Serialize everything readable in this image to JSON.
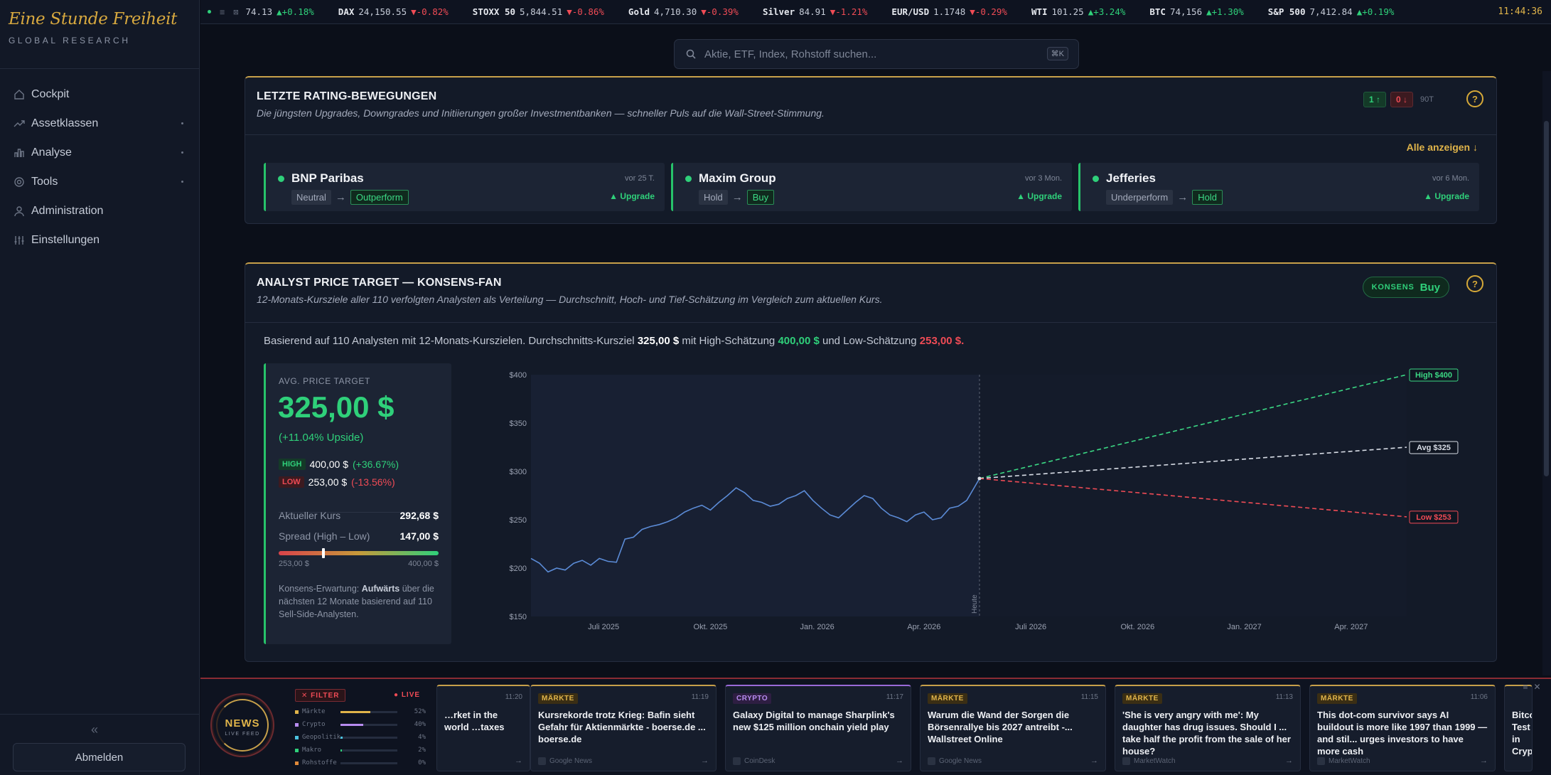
{
  "brand": {
    "name": "Eine Stunde Freiheit",
    "subtitle": "GLOBAL RESEARCH"
  },
  "sidebar": {
    "items": [
      {
        "label": "Cockpit",
        "icon": "home-icon",
        "has_sub": false
      },
      {
        "label": "Assetklassen",
        "icon": "trend-icon",
        "has_sub": true
      },
      {
        "label": "Analyse",
        "icon": "bar-chart-icon",
        "has_sub": true
      },
      {
        "label": "Tools",
        "icon": "gear-icon",
        "has_sub": true
      },
      {
        "label": "Administration",
        "icon": "users-icon",
        "has_sub": false
      },
      {
        "label": "Einstellungen",
        "icon": "sliders-icon",
        "has_sub": false
      }
    ],
    "collapse": "«",
    "logout": "Abmelden"
  },
  "ticker": {
    "items": [
      {
        "name": "",
        "value": "74.13",
        "change": "▲+0.18%",
        "dir": "up"
      },
      {
        "name": "DAX",
        "value": "24,150.55",
        "change": "▼-0.82%",
        "dir": "down"
      },
      {
        "name": "STOXX 50",
        "value": "5,844.51",
        "change": "▼-0.86%",
        "dir": "down"
      },
      {
        "name": "Gold",
        "value": "4,710.30",
        "change": "▼-0.39%",
        "dir": "down"
      },
      {
        "name": "Silver",
        "value": "84.91",
        "change": "▼-1.21%",
        "dir": "down"
      },
      {
        "name": "EUR/USD",
        "value": "1.1748",
        "change": "▼-0.29%",
        "dir": "down"
      },
      {
        "name": "WTI",
        "value": "101.25",
        "change": "▲+3.24%",
        "dir": "up"
      },
      {
        "name": "BTC",
        "value": "74,156",
        "change": "▲+1.30%",
        "dir": "up"
      },
      {
        "name": "S&P 500",
        "value": "7,412.84",
        "change": "▲+0.19%",
        "dir": "up"
      }
    ],
    "clock": "11:44:36"
  },
  "search": {
    "placeholder": "Aktie, ETF, Index, Rohstoff suchen...",
    "shortcut": "⌘K"
  },
  "ratings_card": {
    "title": "LETZTE RATING-BEWEGUNGEN",
    "desc": "Die jüngsten Upgrades, Downgrades und Initiierungen großer Investmentbanken — schneller Puls auf die Wall-Street-Stimmung.",
    "up_badge": "1 ↑",
    "down_badge": "0 ↓",
    "period": "90T",
    "help": "?",
    "show_all": "Alle anzeigen ↓",
    "items": [
      {
        "bank": "BNP Paribas",
        "ago": "vor 25 T.",
        "from": "Neutral",
        "to": "Outperform",
        "action": "▲ Upgrade"
      },
      {
        "bank": "Maxim Group",
        "ago": "vor 3 Mon.",
        "from": "Hold",
        "to": "Buy",
        "action": "▲ Upgrade"
      },
      {
        "bank": "Jefferies",
        "ago": "vor 6 Mon.",
        "from": "Underperform",
        "to": "Hold",
        "action": "▲ Upgrade"
      }
    ]
  },
  "pt_card": {
    "title": "ANALYST PRICE TARGET — KONSENS-FAN",
    "desc": "12-Monats-Kursziele aller 110 verfolgten Analysten als Verteilung — Durchschnitt, Hoch- und Tief-Schätzung im Vergleich zum aktuellen Kurs.",
    "consensus_label": "KONSENS",
    "consensus_value": "Buy",
    "help": "?",
    "summary_pre": "Basierend auf 110 Analysten mit 12-Monats-Kurszielen. Durchschnitts-Kursziel ",
    "summary_avg": "325,00 $",
    "summary_mid": " mit High-Schätzung ",
    "summary_high": "400,00 $",
    "summary_mid2": " und Low-Schätzung ",
    "summary_low": "253,00 $.",
    "box": {
      "label": "AVG. PRICE TARGET",
      "avg": "325,00 $",
      "upside": "(+11.04% Upside)",
      "high_tag": "HIGH",
      "high_val": "400,00 $",
      "high_pct": "(+36.67%)",
      "low_tag": "LOW",
      "low_val": "253,00 $",
      "low_pct": "(-13.56%)",
      "current_label": "Aktueller Kurs",
      "current_val": "292,68 $",
      "spread_label": "Spread (High – Low)",
      "spread_val": "147,00 $",
      "spread_min": "253,00 $",
      "spread_max": "400,00 $",
      "current_position": 0.27,
      "note_pre": "Konsens-Erwartung: ",
      "note_bold": "Aufwärts",
      "note_post": " über die nächsten 12 Monate basierend auf 110 Sell-Side-Analysten."
    }
  },
  "chart_data": {
    "type": "line",
    "ylim": [
      150,
      400
    ],
    "yticks": [
      "$150",
      "$200",
      "$250",
      "$300",
      "$350",
      "$400"
    ],
    "ytick_values": [
      150,
      200,
      250,
      300,
      350,
      400
    ],
    "x_ticks": [
      "Juli 2025",
      "Okt. 2025",
      "Jan. 2026",
      "Apr. 2026",
      "Juli 2026",
      "Okt. 2026",
      "Jan. 2027",
      "Apr. 2027"
    ],
    "x_tick_values": [
      2025.5,
      2025.75,
      2026.0,
      2026.25,
      2026.5,
      2026.75,
      2027.0,
      2027.25
    ],
    "xlim": [
      2025.33,
      2027.42
    ],
    "today_label": "Heute",
    "today_x": 2026.38,
    "history": {
      "x": [
        2025.33,
        2025.35,
        2025.37,
        2025.39,
        2025.41,
        2025.43,
        2025.45,
        2025.47,
        2025.49,
        2025.51,
        2025.53,
        2025.55,
        2025.57,
        2025.59,
        2025.61,
        2025.63,
        2025.65,
        2025.67,
        2025.69,
        2025.71,
        2025.73,
        2025.75,
        2025.77,
        2025.79,
        2025.81,
        2025.83,
        2025.85,
        2025.87,
        2025.89,
        2025.91,
        2025.93,
        2025.95,
        2025.97,
        2025.99,
        2026.01,
        2026.03,
        2026.05,
        2026.07,
        2026.09,
        2026.11,
        2026.13,
        2026.15,
        2026.17,
        2026.19,
        2026.21,
        2026.23,
        2026.25,
        2026.27,
        2026.29,
        2026.31,
        2026.33,
        2026.35,
        2026.37,
        2026.38
      ],
      "y": [
        210,
        205,
        196,
        200,
        198,
        205,
        208,
        203,
        210,
        207,
        206,
        230,
        232,
        240,
        243,
        245,
        248,
        252,
        258,
        262,
        265,
        260,
        268,
        275,
        283,
        278,
        270,
        268,
        264,
        266,
        272,
        275,
        280,
        270,
        262,
        255,
        252,
        260,
        268,
        275,
        272,
        262,
        255,
        252,
        248,
        255,
        258,
        250,
        252,
        262,
        264,
        270,
        285,
        292.68
      ]
    },
    "series": [
      {
        "name": "High $400",
        "target": 400,
        "color": "#3bd884"
      },
      {
        "name": "Avg $325",
        "target": 325,
        "color": "#d8dde6"
      },
      {
        "name": "Low $253",
        "target": 253,
        "color": "#ef4b55"
      }
    ],
    "target_x": 2027.38,
    "start_value": 292.68,
    "line_color": "#5b8bd6",
    "grid": false
  },
  "news": {
    "badge_title": "NEWS",
    "badge_sub": "LIVE FEED",
    "filter": "✕ FILTER",
    "live": "● LIVE",
    "categories": [
      {
        "name": "Märkte",
        "pct": "52%",
        "value": 0.52,
        "color": "#e0b44a"
      },
      {
        "name": "Crypto",
        "pct": "40%",
        "value": 0.4,
        "color": "#b78cf0"
      },
      {
        "name": "Geopolitik",
        "pct": "4%",
        "value": 0.04,
        "color": "#4cc3e0"
      },
      {
        "name": "Makro",
        "pct": "2%",
        "value": 0.02,
        "color": "#2fd07a"
      },
      {
        "name": "Rohstoffe",
        "pct": "0%",
        "value": 0.0,
        "color": "#e08a3a"
      }
    ],
    "items": [
      {
        "cat": "",
        "time": "11:20",
        "title": "…rket in the world …taxes",
        "source": "",
        "crypto": false
      },
      {
        "cat": "MÄRKTE",
        "time": "11:19",
        "title": "Kursrekorde trotz Krieg: Bafin sieht Gefahr für Aktienmärkte - boerse.de ... boerse.de",
        "source": "Google News",
        "crypto": false
      },
      {
        "cat": "CRYPTO",
        "time": "11:17",
        "title": "Galaxy Digital to manage Sharplink's new $125 million onchain yield play",
        "source": "CoinDesk",
        "crypto": true
      },
      {
        "cat": "MÄRKTE",
        "time": "11:15",
        "title": "Warum die Wand der Sorgen die Börsenrallye bis 2027 antreibt -... Wallstreet Online",
        "source": "Google News",
        "crypto": false
      },
      {
        "cat": "MÄRKTE",
        "time": "11:13",
        "title": "'She is very angry with me': My daughter has drug issues. Should I ... take half the profit from the sale of her house?",
        "source": "MarketWatch",
        "crypto": false
      },
      {
        "cat": "MÄRKTE",
        "time": "11:06",
        "title": "This dot-com survivor says AI buildout is more like 1997 than 1999 — and stil... urges investors to have more cash",
        "source": "MarketWatch",
        "crypto": false
      },
      {
        "cat": "",
        "time": "",
        "title": "Bitcoin Test in Crypto",
        "source": "",
        "crypto": false
      }
    ]
  }
}
